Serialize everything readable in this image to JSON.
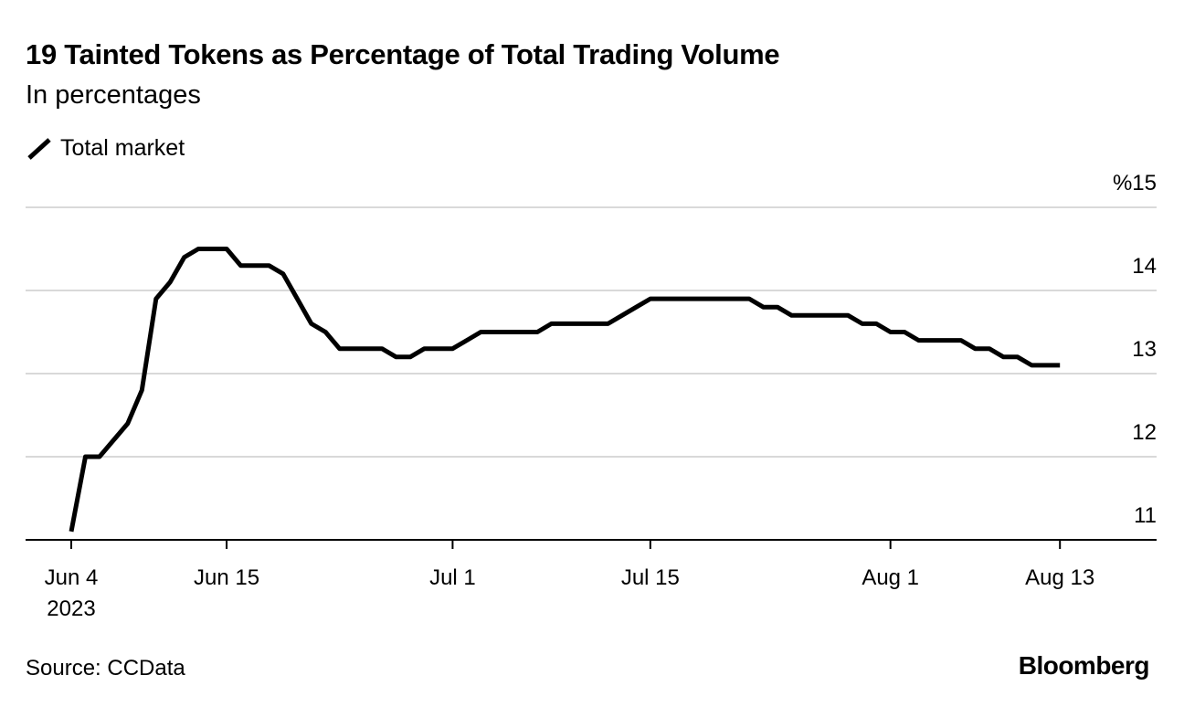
{
  "chart_data": {
    "type": "line",
    "title": "19 Tainted Tokens as Percentage of Total Trading Volume",
    "subtitle": "In percentages",
    "xlabel": "",
    "ylabel": "",
    "y_unit_label": "%",
    "ylim": [
      11,
      15
    ],
    "yticks": [
      11,
      12,
      13,
      14,
      15
    ],
    "ytick_labels": [
      "11",
      "12",
      "13",
      "14",
      "%15"
    ],
    "xlim": [
      "2023-06-04",
      "2023-08-19"
    ],
    "xticks": [
      {
        "date": "2023-06-04",
        "label": "Jun 4",
        "sublabel": "2023"
      },
      {
        "date": "2023-06-15",
        "label": "Jun 15"
      },
      {
        "date": "2023-07-01",
        "label": "Jul 1"
      },
      {
        "date": "2023-07-15",
        "label": "Jul 15"
      },
      {
        "date": "2023-08-01",
        "label": "Aug 1"
      },
      {
        "date": "2023-08-13",
        "label": "Aug 13"
      }
    ],
    "grid": true,
    "legend_placement": "top-left",
    "series": [
      {
        "name": "Total market",
        "color": "#000000",
        "points": [
          [
            "2023-06-04",
            11.1
          ],
          [
            "2023-06-05",
            12.0
          ],
          [
            "2023-06-06",
            12.0
          ],
          [
            "2023-06-07",
            12.2
          ],
          [
            "2023-06-08",
            12.4
          ],
          [
            "2023-06-09",
            12.8
          ],
          [
            "2023-06-10",
            13.9
          ],
          [
            "2023-06-11",
            14.1
          ],
          [
            "2023-06-12",
            14.4
          ],
          [
            "2023-06-13",
            14.5
          ],
          [
            "2023-06-14",
            14.5
          ],
          [
            "2023-06-15",
            14.5
          ],
          [
            "2023-06-16",
            14.3
          ],
          [
            "2023-06-17",
            14.3
          ],
          [
            "2023-06-18",
            14.3
          ],
          [
            "2023-06-19",
            14.2
          ],
          [
            "2023-06-20",
            13.9
          ],
          [
            "2023-06-21",
            13.6
          ],
          [
            "2023-06-22",
            13.5
          ],
          [
            "2023-06-23",
            13.3
          ],
          [
            "2023-06-24",
            13.3
          ],
          [
            "2023-06-25",
            13.3
          ],
          [
            "2023-06-26",
            13.3
          ],
          [
            "2023-06-27",
            13.2
          ],
          [
            "2023-06-28",
            13.2
          ],
          [
            "2023-06-29",
            13.3
          ],
          [
            "2023-06-30",
            13.3
          ],
          [
            "2023-07-01",
            13.3
          ],
          [
            "2023-07-02",
            13.4
          ],
          [
            "2023-07-03",
            13.5
          ],
          [
            "2023-07-04",
            13.5
          ],
          [
            "2023-07-05",
            13.5
          ],
          [
            "2023-07-06",
            13.5
          ],
          [
            "2023-07-07",
            13.5
          ],
          [
            "2023-07-08",
            13.6
          ],
          [
            "2023-07-09",
            13.6
          ],
          [
            "2023-07-10",
            13.6
          ],
          [
            "2023-07-11",
            13.6
          ],
          [
            "2023-07-12",
            13.6
          ],
          [
            "2023-07-13",
            13.7
          ],
          [
            "2023-07-14",
            13.8
          ],
          [
            "2023-07-15",
            13.9
          ],
          [
            "2023-07-16",
            13.9
          ],
          [
            "2023-07-17",
            13.9
          ],
          [
            "2023-07-18",
            13.9
          ],
          [
            "2023-07-19",
            13.9
          ],
          [
            "2023-07-20",
            13.9
          ],
          [
            "2023-07-21",
            13.9
          ],
          [
            "2023-07-22",
            13.9
          ],
          [
            "2023-07-23",
            13.8
          ],
          [
            "2023-07-24",
            13.8
          ],
          [
            "2023-07-25",
            13.7
          ],
          [
            "2023-07-26",
            13.7
          ],
          [
            "2023-07-27",
            13.7
          ],
          [
            "2023-07-28",
            13.7
          ],
          [
            "2023-07-29",
            13.7
          ],
          [
            "2023-07-30",
            13.6
          ],
          [
            "2023-07-31",
            13.6
          ],
          [
            "2023-08-01",
            13.5
          ],
          [
            "2023-08-02",
            13.5
          ],
          [
            "2023-08-03",
            13.4
          ],
          [
            "2023-08-04",
            13.4
          ],
          [
            "2023-08-05",
            13.4
          ],
          [
            "2023-08-06",
            13.4
          ],
          [
            "2023-08-07",
            13.3
          ],
          [
            "2023-08-08",
            13.3
          ],
          [
            "2023-08-09",
            13.2
          ],
          [
            "2023-08-10",
            13.2
          ],
          [
            "2023-08-11",
            13.1
          ],
          [
            "2023-08-12",
            13.1
          ],
          [
            "2023-08-13",
            13.1
          ]
        ]
      }
    ]
  },
  "source": "Source: CCData",
  "logo": "Bloomberg"
}
